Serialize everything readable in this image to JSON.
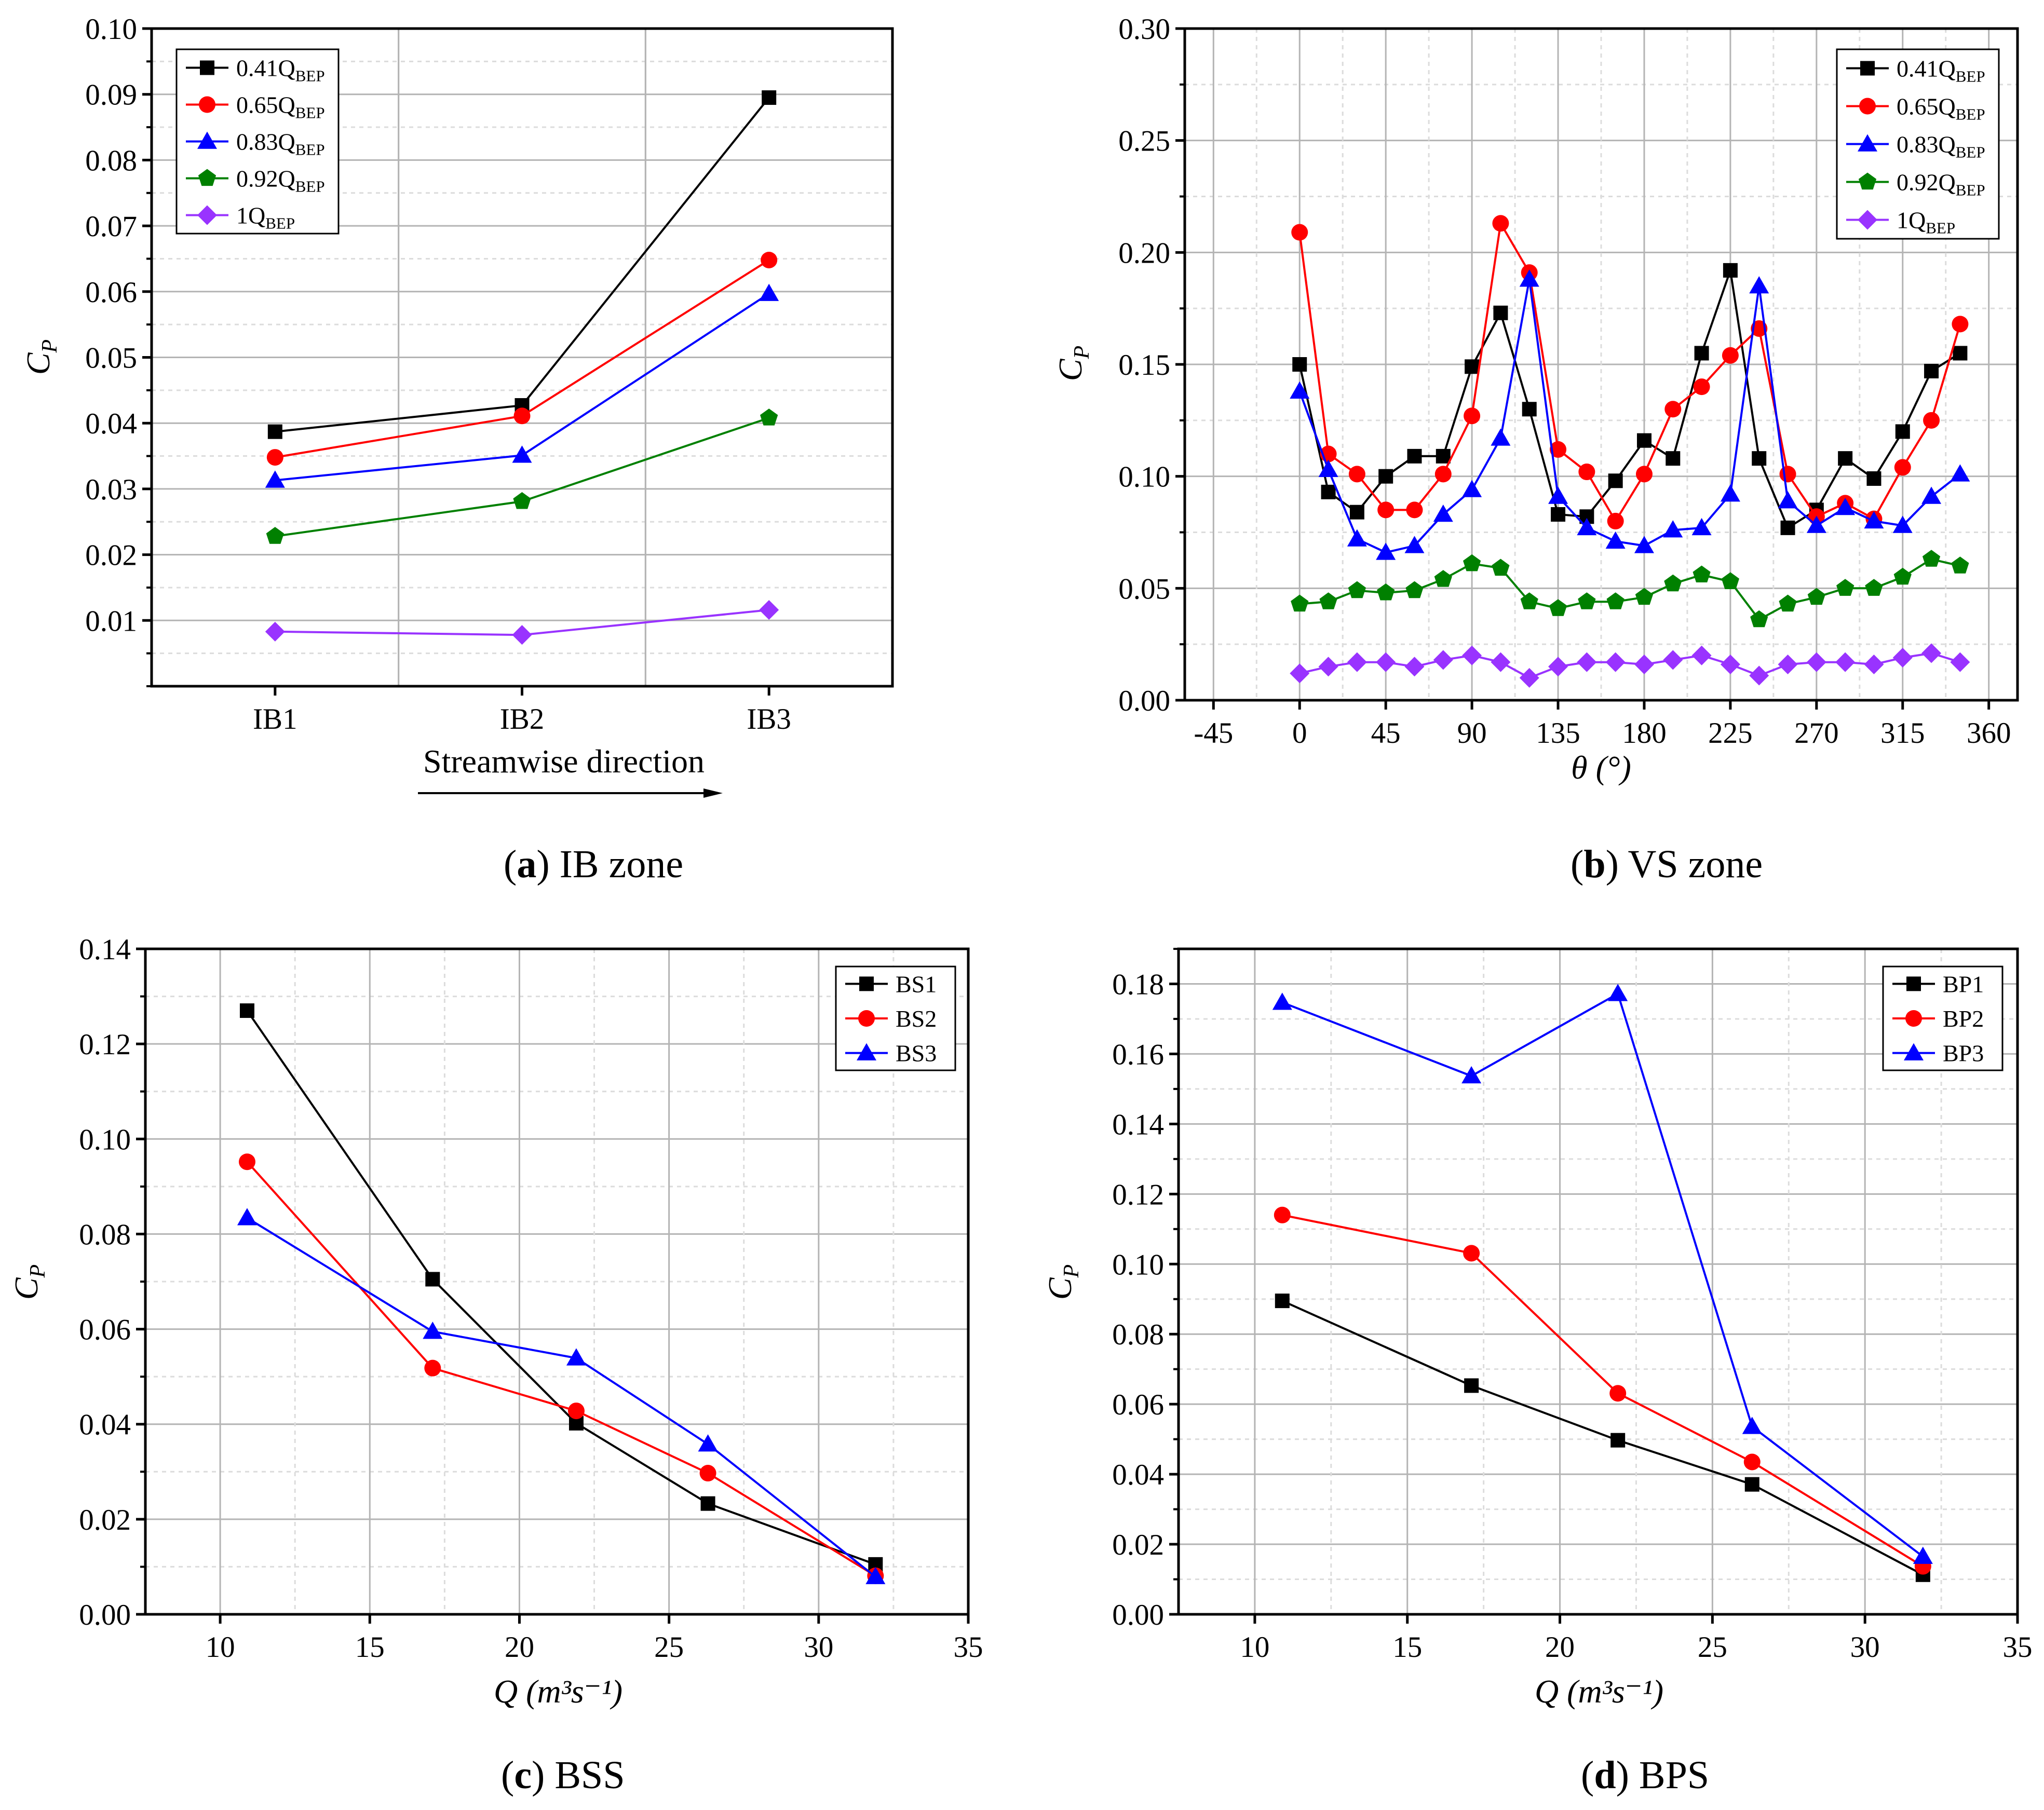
{
  "colors": {
    "black": "#000000",
    "red": "#ff0000",
    "blue": "#0000ff",
    "green": "#008000",
    "violet": "#9933ff",
    "grid_major": "#b4b4b4",
    "grid_minor": "#dcdcdc"
  },
  "chart_data": [
    {
      "panel": "a",
      "type": "line",
      "caption_letter": "a",
      "caption_text": " IB zone",
      "ylabel": "C",
      "ylabel_sub": "P",
      "xlabel": "Streamwise direction",
      "x_is_category": true,
      "categories": [
        "IB1",
        "IB2",
        "IB3"
      ],
      "xlim": [
        0.5,
        3.5
      ],
      "ylim": [
        0.0,
        0.1
      ],
      "yticks": [
        0.01,
        0.02,
        0.03,
        0.04,
        0.05,
        0.06,
        0.07,
        0.08,
        0.09,
        0.1
      ],
      "ytick_labels": [
        "0.01",
        "0.02",
        "0.03",
        "0.04",
        "0.05",
        "0.06",
        "0.07",
        "0.08",
        "0.09",
        "0.10"
      ],
      "grid": true,
      "legend_position": "top-left",
      "series": [
        {
          "name": "0.41Q",
          "sub": "BEP",
          "color": "#000000",
          "marker": "square",
          "x": [
            1,
            2,
            3
          ],
          "y": [
            0.0387,
            0.0427,
            0.0895
          ]
        },
        {
          "name": "0.65Q",
          "sub": "BEP",
          "color": "#ff0000",
          "marker": "circle",
          "x": [
            1,
            2,
            3
          ],
          "y": [
            0.0348,
            0.0411,
            0.0648
          ]
        },
        {
          "name": "0.83Q",
          "sub": "BEP",
          "color": "#0000ff",
          "marker": "triangle",
          "x": [
            1,
            2,
            3
          ],
          "y": [
            0.0313,
            0.0351,
            0.0597
          ]
        },
        {
          "name": "0.92Q",
          "sub": "BEP",
          "color": "#008000",
          "marker": "pentagon",
          "x": [
            1,
            2,
            3
          ],
          "y": [
            0.0228,
            0.0281,
            0.0408
          ]
        },
        {
          "name": "1Q",
          "sub": "BEP",
          "color": "#9933ff",
          "marker": "diamond",
          "x": [
            1,
            2,
            3
          ],
          "y": [
            0.0083,
            0.0078,
            0.0116
          ]
        }
      ]
    },
    {
      "panel": "b",
      "type": "line",
      "caption_letter": "b",
      "caption_text": " VS zone",
      "ylabel": "C",
      "ylabel_sub": "P",
      "xlabel": "θ (°)",
      "xlim": [
        -60,
        375
      ],
      "ylim": [
        0.0,
        0.3
      ],
      "xticks": [
        -45,
        0,
        45,
        90,
        135,
        180,
        225,
        270,
        315,
        360
      ],
      "xtick_labels": [
        "-45",
        "0",
        "45",
        "90",
        "135",
        "180",
        "225",
        "270",
        "315",
        "360"
      ],
      "yticks": [
        0.0,
        0.05,
        0.1,
        0.15,
        0.2,
        0.25,
        0.3
      ],
      "ytick_labels": [
        "0.00",
        "0.05",
        "0.10",
        "0.15",
        "0.20",
        "0.25",
        "0.30"
      ],
      "grid": true,
      "legend_position": "top-right",
      "x": [
        0,
        15,
        30,
        45,
        60,
        75,
        90,
        105,
        120,
        135,
        150,
        165,
        180,
        195,
        210,
        225,
        240,
        255,
        270,
        285,
        300,
        315,
        330,
        345
      ],
      "series": [
        {
          "name": "0.41Q",
          "sub": "BEP",
          "color": "#000000",
          "marker": "square",
          "y": [
            0.15,
            0.093,
            0.084,
            0.1,
            0.109,
            0.109,
            0.149,
            0.173,
            0.13,
            0.083,
            0.082,
            0.098,
            0.116,
            0.108,
            0.155,
            0.192,
            0.108,
            0.077,
            0.085,
            0.108,
            0.099,
            0.12,
            0.147,
            0.155
          ]
        },
        {
          "name": "0.65Q",
          "sub": "BEP",
          "color": "#ff0000",
          "marker": "circle",
          "y": [
            0.209,
            0.11,
            0.101,
            0.085,
            0.085,
            0.101,
            0.127,
            0.213,
            0.191,
            0.112,
            0.102,
            0.08,
            0.101,
            0.13,
            0.14,
            0.154,
            0.166,
            0.101,
            0.082,
            0.088,
            0.081,
            0.104,
            0.125,
            0.168
          ]
        },
        {
          "name": "0.83Q",
          "sub": "BEP",
          "color": "#0000ff",
          "marker": "triangle",
          "y": [
            0.138,
            0.103,
            0.072,
            0.066,
            0.069,
            0.083,
            0.094,
            0.117,
            0.188,
            0.091,
            0.077,
            0.071,
            0.069,
            0.076,
            0.077,
            0.092,
            0.185,
            0.089,
            0.078,
            0.086,
            0.08,
            0.078,
            0.091,
            0.101
          ]
        },
        {
          "name": "0.92Q",
          "sub": "BEP",
          "color": "#008000",
          "marker": "pentagon",
          "y": [
            0.043,
            0.044,
            0.049,
            0.048,
            0.049,
            0.054,
            0.061,
            0.059,
            0.044,
            0.041,
            0.044,
            0.044,
            0.046,
            0.052,
            0.056,
            0.053,
            0.036,
            0.043,
            0.046,
            0.05,
            0.05,
            0.055,
            0.063,
            0.06
          ]
        },
        {
          "name": "1Q",
          "sub": "BEP",
          "color": "#9933ff",
          "marker": "diamond",
          "y": [
            0.012,
            0.015,
            0.017,
            0.017,
            0.015,
            0.018,
            0.02,
            0.017,
            0.01,
            0.015,
            0.017,
            0.017,
            0.016,
            0.018,
            0.02,
            0.016,
            0.011,
            0.016,
            0.017,
            0.017,
            0.016,
            0.019,
            0.021,
            0.017
          ]
        }
      ]
    },
    {
      "panel": "c",
      "type": "line",
      "caption_letter": "c",
      "caption_text": " BSS",
      "ylabel": "C",
      "ylabel_sub": "P",
      "xlabel": "Q (m³s⁻¹)",
      "xlim": [
        7.5,
        35
      ],
      "ylim": [
        0.0,
        0.14
      ],
      "xticks": [
        10,
        15,
        20,
        25,
        30,
        35
      ],
      "xtick_labels": [
        "10",
        "15",
        "20",
        "25",
        "30",
        "35"
      ],
      "yticks": [
        0.0,
        0.02,
        0.04,
        0.06,
        0.08,
        0.1,
        0.12,
        0.14
      ],
      "ytick_labels": [
        "0.00",
        "0.02",
        "0.04",
        "0.06",
        "0.08",
        "0.10",
        "0.12",
        "0.14"
      ],
      "grid": true,
      "legend_position": "top-right",
      "series": [
        {
          "name": "BS1",
          "sub": "",
          "color": "#000000",
          "marker": "square",
          "x": [
            10.9,
            17.1,
            21.9,
            26.3,
            31.9
          ],
          "y": [
            0.127,
            0.0705,
            0.0402,
            0.0233,
            0.0105
          ]
        },
        {
          "name": "BS2",
          "sub": "",
          "color": "#ff0000",
          "marker": "circle",
          "x": [
            10.9,
            17.1,
            21.9,
            26.3,
            31.9
          ],
          "y": [
            0.0952,
            0.0518,
            0.0428,
            0.0297,
            0.0081
          ]
        },
        {
          "name": "BS3",
          "sub": "",
          "color": "#0000ff",
          "marker": "triangle",
          "x": [
            10.9,
            17.1,
            21.9,
            26.3,
            31.9
          ],
          "y": [
            0.0834,
            0.0595,
            0.0539,
            0.0358,
            0.0079
          ]
        }
      ]
    },
    {
      "panel": "d",
      "type": "line",
      "caption_letter": "d",
      "caption_text": " BPS",
      "ylabel": "C",
      "ylabel_sub": "P",
      "xlabel": "Q (m³s⁻¹)",
      "xlim": [
        7.5,
        35
      ],
      "ylim": [
        0.0,
        0.19
      ],
      "xticks": [
        10,
        15,
        20,
        25,
        30,
        35
      ],
      "xtick_labels": [
        "10",
        "15",
        "20",
        "25",
        "30",
        "35"
      ],
      "yticks": [
        0.0,
        0.02,
        0.04,
        0.06,
        0.08,
        0.1,
        0.12,
        0.14,
        0.16,
        0.18
      ],
      "ytick_labels": [
        "0.00",
        "0.02",
        "0.04",
        "0.06",
        "0.08",
        "0.10",
        "0.12",
        "0.14",
        "0.16",
        "0.18"
      ],
      "grid": true,
      "legend_position": "top-right",
      "series": [
        {
          "name": "BP1",
          "sub": "",
          "color": "#000000",
          "marker": "square",
          "x": [
            10.9,
            17.1,
            21.9,
            26.3,
            31.9
          ],
          "y": [
            0.0895,
            0.0653,
            0.0497,
            0.0371,
            0.0113
          ]
        },
        {
          "name": "BP2",
          "sub": "",
          "color": "#ff0000",
          "marker": "circle",
          "x": [
            10.9,
            17.1,
            21.9,
            26.3,
            31.9
          ],
          "y": [
            0.114,
            0.1031,
            0.0631,
            0.0435,
            0.0137
          ]
        },
        {
          "name": "BP3",
          "sub": "",
          "color": "#0000ff",
          "marker": "triangle",
          "x": [
            10.9,
            17.1,
            21.9,
            26.3,
            31.9
          ],
          "y": [
            0.1747,
            0.1537,
            0.1772,
            0.0536,
            0.0165
          ]
        }
      ]
    }
  ]
}
